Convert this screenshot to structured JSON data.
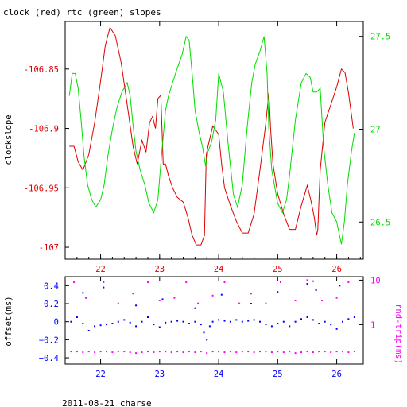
{
  "title": "clock (red) rtc (green) slopes",
  "footer": "2011-08-21 charse",
  "colors": {
    "red": "#dd0000",
    "green": "#00dd00",
    "blue": "#0000ff",
    "magenta": "#ff00ff",
    "axis": "#000000"
  },
  "chart_data": [
    {
      "type": "line",
      "ylabel": "clockslope",
      "xlim": [
        21.4,
        26.45
      ],
      "x_ticks": [
        22,
        23,
        24,
        25,
        26
      ],
      "x_ticks_minor_step": 0.2,
      "ylim_left": [
        -107.01,
        -106.81
      ],
      "y_ticks_left": [
        -106.85,
        -106.9,
        -106.95,
        -107
      ],
      "y_tick_labels_left": [
        "-106.85",
        "-106.9",
        "-106.95",
        "-107"
      ],
      "ylim_right": [
        26.3,
        27.58
      ],
      "y_ticks_right": [
        26.5,
        27,
        27.5
      ],
      "y_tick_labels_right": [
        "26.5",
        "27",
        "27.5"
      ],
      "series": [
        {
          "color": "red",
          "axis": "left",
          "x": [
            21.47,
            21.55,
            21.62,
            21.7,
            21.8,
            21.9,
            22.0,
            22.08,
            22.16,
            22.25,
            22.35,
            22.45,
            22.55,
            22.62,
            22.7,
            22.77,
            22.83,
            22.88,
            22.93,
            22.97,
            23.02,
            23.06,
            23.1,
            23.15,
            23.22,
            23.3,
            23.4,
            23.48,
            23.55,
            23.62,
            23.7,
            23.76,
            23.79,
            23.82,
            23.9,
            24.0,
            24.05,
            24.1,
            24.2,
            24.3,
            24.4,
            24.5,
            24.6,
            24.7,
            24.8,
            24.85,
            24.88,
            24.92,
            25.0,
            25.1,
            25.2,
            25.3,
            25.4,
            25.5,
            25.56,
            25.62,
            25.66,
            25.68,
            25.72,
            25.8,
            25.9,
            26.0,
            26.08,
            26.14,
            26.2,
            26.28
          ],
          "y": [
            -106.915,
            -106.915,
            -106.928,
            -106.935,
            -106.922,
            -106.895,
            -106.86,
            -106.83,
            -106.815,
            -106.822,
            -106.845,
            -106.88,
            -106.915,
            -106.93,
            -106.91,
            -106.92,
            -106.895,
            -106.89,
            -106.9,
            -106.875,
            -106.872,
            -106.93,
            -106.93,
            -106.94,
            -106.95,
            -106.958,
            -106.962,
            -106.975,
            -106.99,
            -106.998,
            -106.998,
            -106.99,
            -106.922,
            -106.915,
            -106.898,
            -106.905,
            -106.93,
            -106.95,
            -106.965,
            -106.978,
            -106.988,
            -106.988,
            -106.972,
            -106.935,
            -106.895,
            -106.87,
            -106.9,
            -106.93,
            -106.955,
            -106.972,
            -106.985,
            -106.985,
            -106.965,
            -106.948,
            -106.96,
            -106.975,
            -106.99,
            -106.985,
            -106.935,
            -106.895,
            -106.88,
            -106.865,
            -106.85,
            -106.853,
            -106.87,
            -106.9
          ]
        },
        {
          "color": "green",
          "axis": "right",
          "x": [
            21.47,
            21.52,
            21.57,
            21.62,
            21.67,
            21.72,
            21.78,
            21.85,
            21.92,
            22.0,
            22.06,
            22.12,
            22.2,
            22.28,
            22.36,
            22.45,
            22.5,
            22.55,
            22.6,
            22.67,
            22.75,
            22.82,
            22.9,
            22.97,
            23.03,
            23.1,
            23.15,
            23.22,
            23.3,
            23.38,
            23.45,
            23.5,
            23.55,
            23.6,
            23.67,
            23.73,
            23.78,
            23.82,
            23.88,
            23.95,
            24.0,
            24.08,
            24.16,
            24.25,
            24.32,
            24.4,
            24.48,
            24.56,
            24.62,
            24.7,
            24.77,
            24.82,
            24.85,
            24.9,
            25.0,
            25.08,
            25.15,
            25.2,
            25.3,
            25.4,
            25.48,
            25.55,
            25.6,
            25.66,
            25.72,
            25.78,
            25.85,
            25.92,
            26.0,
            26.08,
            26.13,
            26.18,
            26.25,
            26.3
          ],
          "y": [
            27.18,
            27.3,
            27.3,
            27.22,
            27.05,
            26.85,
            26.7,
            26.62,
            26.58,
            26.62,
            26.7,
            26.85,
            27.0,
            27.12,
            27.2,
            27.25,
            27.18,
            27.02,
            26.88,
            26.78,
            26.7,
            26.6,
            26.55,
            26.62,
            26.85,
            27.1,
            27.18,
            27.25,
            27.33,
            27.4,
            27.5,
            27.48,
            27.3,
            27.1,
            26.98,
            26.9,
            26.8,
            26.88,
            26.93,
            27.05,
            27.3,
            27.2,
            26.92,
            26.65,
            26.58,
            26.7,
            27.0,
            27.25,
            27.35,
            27.42,
            27.5,
            27.3,
            27.0,
            26.78,
            26.6,
            26.55,
            26.62,
            26.75,
            27.05,
            27.25,
            27.3,
            27.28,
            27.2,
            27.2,
            27.22,
            26.9,
            26.7,
            26.55,
            26.5,
            26.38,
            26.5,
            26.7,
            26.88,
            26.98
          ]
        }
      ]
    },
    {
      "type": "scatter",
      "ylabel_left": "offset(ms)",
      "ylabel_right": "rnd-trip(ms)",
      "xlim": [
        21.4,
        26.45
      ],
      "x_ticks": [
        22,
        23,
        24,
        25,
        26
      ],
      "ylim_left": [
        -0.47,
        0.5
      ],
      "y_ticks_left": [
        0.4,
        0.2,
        0,
        -0.2,
        -0.4
      ],
      "y_tick_labels_left": [
        "0.4",
        "0.2",
        "0",
        "−0.2",
        "−0.4"
      ],
      "ylim_right_log": [
        0.13,
        12
      ],
      "y_ticks_right": [
        1,
        10
      ],
      "y_tick_labels_right": [
        "1",
        "10"
      ],
      "series": [
        {
          "color": "blue",
          "axis": "left",
          "marker": "dot",
          "x": [
            21.5,
            21.6,
            21.7,
            21.8,
            21.9,
            22.0,
            22.1,
            22.2,
            22.3,
            22.4,
            22.5,
            22.6,
            22.7,
            22.8,
            22.9,
            23.0,
            23.1,
            23.2,
            23.3,
            23.4,
            23.5,
            23.6,
            23.7,
            23.75,
            23.8,
            23.85,
            23.9,
            24.0,
            24.1,
            24.2,
            24.3,
            24.4,
            24.5,
            24.6,
            24.7,
            24.8,
            24.9,
            25.0,
            25.1,
            25.2,
            25.3,
            25.4,
            25.5,
            25.6,
            25.7,
            25.8,
            25.9,
            26.0,
            26.1,
            26.2,
            26.3
          ],
          "y": [
            0.0,
            0.05,
            -0.02,
            -0.1,
            -0.05,
            -0.04,
            -0.03,
            -0.02,
            0.0,
            0.02,
            -0.01,
            -0.05,
            0.0,
            0.05,
            -0.03,
            -0.06,
            -0.01,
            0.0,
            0.01,
            0.0,
            -0.02,
            0.0,
            -0.03,
            -0.12,
            -0.2,
            -0.05,
            0.0,
            0.02,
            0.01,
            0.0,
            0.02,
            0.0,
            0.01,
            0.02,
            0.0,
            -0.03,
            -0.05,
            -0.02,
            0.0,
            -0.05,
            0.0,
            0.03,
            0.05,
            0.02,
            -0.02,
            0.0,
            -0.03,
            -0.08,
            0.0,
            0.03,
            0.05
          ]
        },
        {
          "color": "magenta",
          "axis": "right",
          "marker": "dot",
          "x": [
            21.5,
            21.6,
            21.7,
            21.8,
            21.9,
            22.0,
            22.1,
            22.2,
            22.3,
            22.4,
            22.5,
            22.6,
            22.7,
            22.8,
            22.9,
            23.0,
            23.1,
            23.2,
            23.3,
            23.4,
            23.5,
            23.6,
            23.7,
            23.8,
            23.9,
            24.0,
            24.1,
            24.2,
            24.3,
            24.4,
            24.5,
            24.6,
            24.7,
            24.8,
            24.9,
            25.0,
            25.1,
            25.2,
            25.3,
            25.4,
            25.5,
            25.6,
            25.7,
            25.8,
            25.9,
            26.0,
            26.1,
            26.2,
            26.3
          ],
          "y": [
            0.25,
            0.25,
            0.24,
            0.25,
            0.24,
            0.25,
            0.25,
            0.24,
            0.25,
            0.25,
            0.24,
            0.23,
            0.24,
            0.25,
            0.24,
            0.25,
            0.25,
            0.24,
            0.25,
            0.24,
            0.25,
            0.24,
            0.25,
            0.23,
            0.25,
            0.25,
            0.24,
            0.25,
            0.24,
            0.25,
            0.25,
            0.24,
            0.25,
            0.25,
            0.24,
            0.25,
            0.24,
            0.25,
            0.23,
            0.24,
            0.25,
            0.24,
            0.25,
            0.25,
            0.24,
            0.25,
            0.25,
            0.24,
            0.25
          ]
        },
        {
          "color": "magenta",
          "axis": "right",
          "marker": "dot",
          "x": [
            21.55,
            21.75,
            22.05,
            22.3,
            22.55,
            22.8,
            23.0,
            23.25,
            23.45,
            23.65,
            23.9,
            24.1,
            24.35,
            24.55,
            24.8,
            25.05,
            25.3,
            25.5,
            25.6,
            25.75,
            26.0,
            26.2
          ],
          "y": [
            9.0,
            4.0,
            9.0,
            3.0,
            5.0,
            9.0,
            3.5,
            4.0,
            9.0,
            3.0,
            4.5,
            9.0,
            3.0,
            5.0,
            3.0,
            9.0,
            3.5,
            10.0,
            9.5,
            3.5,
            4.0,
            9.0
          ]
        },
        {
          "color": "blue",
          "axis": "left",
          "marker": "dot",
          "x": [
            21.7,
            22.05,
            22.6,
            23.05,
            23.6,
            24.05,
            24.55,
            25.0,
            25.5,
            25.65,
            26.05
          ],
          "y": [
            0.32,
            0.38,
            0.18,
            0.25,
            0.15,
            0.3,
            0.2,
            0.33,
            0.42,
            0.35,
            0.4
          ]
        }
      ]
    }
  ]
}
